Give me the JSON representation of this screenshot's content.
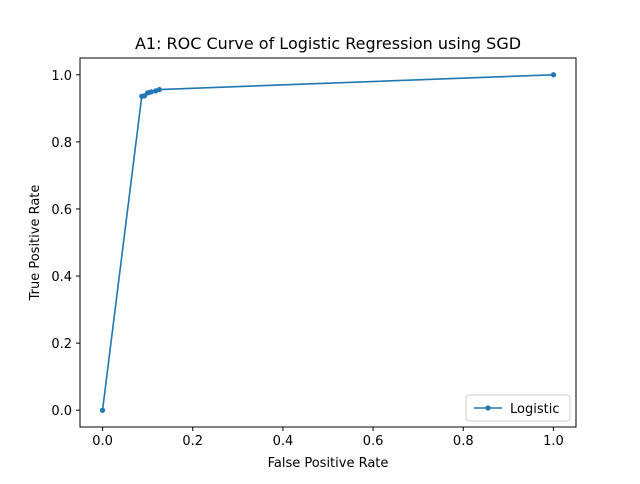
{
  "chart_data": {
    "type": "line",
    "title": "A1: ROC Curve of Logistic Regression using SGD",
    "xlabel": "False Positive Rate",
    "ylabel": "True Positive Rate",
    "xlim": [
      -0.05,
      1.05
    ],
    "ylim": [
      -0.05,
      1.05
    ],
    "xticks": [
      0.0,
      0.2,
      0.4,
      0.6,
      0.8,
      1.0
    ],
    "yticks": [
      0.0,
      0.2,
      0.4,
      0.6,
      0.8,
      1.0
    ],
    "xtick_labels": [
      "0.0",
      "0.2",
      "0.4",
      "0.6",
      "0.8",
      "1.0"
    ],
    "ytick_labels": [
      "0.0",
      "0.2",
      "0.4",
      "0.6",
      "0.8",
      "1.0"
    ],
    "grid": false,
    "legend_position": "lower-right",
    "series": [
      {
        "name": "Logistic",
        "color": "#1f77b4",
        "marker": "point",
        "x": [
          0.0,
          0.087,
          0.093,
          0.1,
          0.103,
          0.108,
          0.118,
          0.126,
          1.0
        ],
        "y": [
          0.0,
          0.936,
          0.937,
          0.946,
          0.947,
          0.949,
          0.952,
          0.956,
          1.0
        ]
      }
    ]
  }
}
